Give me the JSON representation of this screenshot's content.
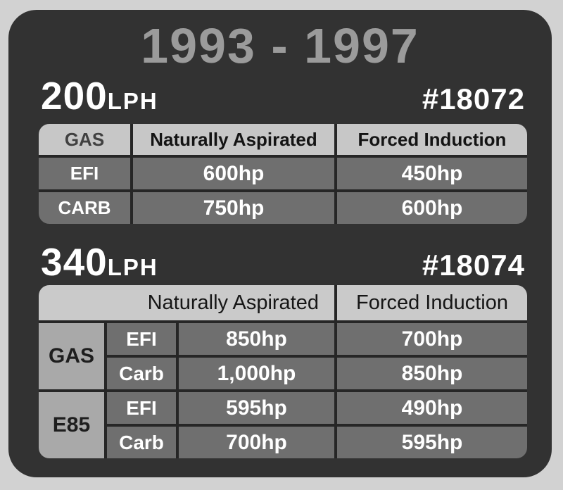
{
  "title": "1993 - 1997",
  "colors": {
    "page_background": "#d2d2d2",
    "card_background": "#323232",
    "title_gray": "#9b9b9b",
    "header_cell_gray": "#c7c7c7",
    "fuel_cell_gray": "#a9a9a9",
    "data_cell_gray": "#6f6f6f",
    "text_white": "#ffffff"
  },
  "chart_data": [
    {
      "type": "table",
      "model": "200",
      "unit": "LPH",
      "part_number": "#18072",
      "columns": [
        "GAS",
        "Naturally Aspirated",
        "Forced Induction"
      ],
      "rows": [
        {
          "fuel_system": "EFI",
          "naturally_aspirated": "600hp",
          "forced_induction": "450hp"
        },
        {
          "fuel_system": "CARB",
          "naturally_aspirated": "750hp",
          "forced_induction": "600hp"
        }
      ]
    },
    {
      "type": "table",
      "model": "340",
      "unit": "LPH",
      "part_number": "#18074",
      "columns": [
        "Naturally Aspirated",
        "Forced Induction"
      ],
      "groups": [
        {
          "fuel": "GAS",
          "rows": [
            {
              "fuel_system": "EFI",
              "naturally_aspirated": "850hp",
              "forced_induction": "700hp"
            },
            {
              "fuel_system": "Carb",
              "naturally_aspirated": "1,000hp",
              "forced_induction": "850hp"
            }
          ]
        },
        {
          "fuel": "E85",
          "rows": [
            {
              "fuel_system": "EFI",
              "naturally_aspirated": "595hp",
              "forced_induction": "490hp"
            },
            {
              "fuel_system": "Carb",
              "naturally_aspirated": "700hp",
              "forced_induction": "595hp"
            }
          ]
        }
      ]
    }
  ]
}
